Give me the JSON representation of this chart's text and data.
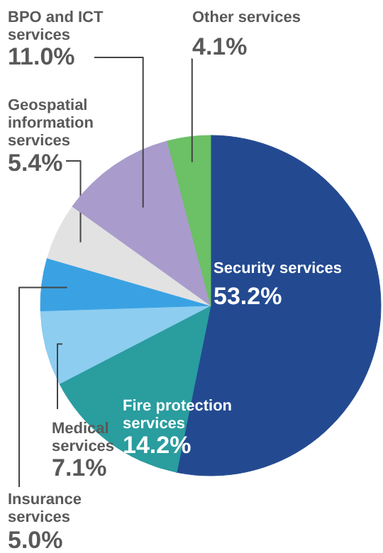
{
  "chart_data": {
    "type": "pie",
    "categories": [
      "Security services",
      "Fire protection services",
      "Medical services",
      "Insurance services",
      "Geospatial information services",
      "BPO and ICT services",
      "Other services"
    ],
    "values": [
      53.2,
      14.2,
      7.1,
      5.0,
      5.4,
      11.0,
      4.1
    ],
    "colors": [
      "#234a91",
      "#2a9d9f",
      "#8dcdf0",
      "#3aa2e3",
      "#e2e2e2",
      "#a99ccc",
      "#6cc066"
    ],
    "value_labels": [
      "53.2%",
      "14.2%",
      "7.1%",
      "5.0%",
      "5.4%",
      "11.0%",
      "4.1%"
    ]
  }
}
